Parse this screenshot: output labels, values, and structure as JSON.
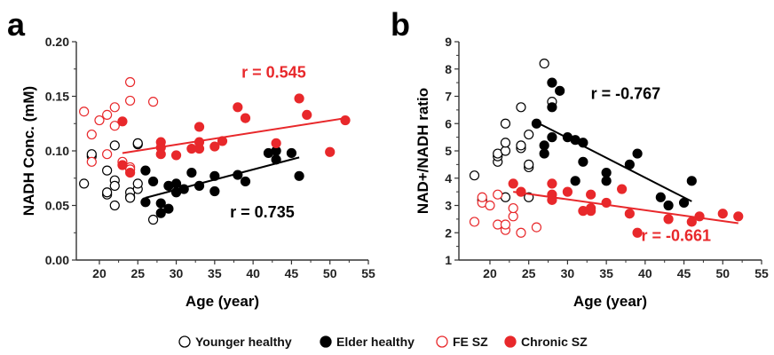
{
  "colors": {
    "healthy": "#000000",
    "sz": "#e8282b"
  },
  "legend": [
    {
      "label": "Younger healthy",
      "color": "#000000",
      "filled": false
    },
    {
      "label": "Elder healthy",
      "color": "#000000",
      "filled": true
    },
    {
      "label": "FE SZ",
      "color": "#e8282b",
      "filled": false
    },
    {
      "label": "Chronic SZ",
      "color": "#e8282b",
      "filled": true
    }
  ],
  "chart_data": [
    {
      "type": "scatter",
      "panel_label": "a",
      "xlabel": "Age (year)",
      "ylabel": "NADH Conc. (mM)",
      "xlim": [
        17,
        55
      ],
      "ylim": [
        0,
        0.2
      ],
      "xticks": [
        20,
        25,
        30,
        35,
        40,
        45,
        50,
        55
      ],
      "yticks": [
        0,
        0.05,
        0.1,
        0.15,
        0.2
      ],
      "ytick_labels": [
        "0.00",
        "0.05",
        "0.10",
        "0.15",
        "0.20"
      ],
      "series": [
        {
          "name": "Younger healthy",
          "filled": false,
          "color": "#000000",
          "points": [
            [
              18,
              0.07
            ],
            [
              19,
              0.095
            ],
            [
              19,
              0.097
            ],
            [
              21,
              0.082
            ],
            [
              21,
              0.06
            ],
            [
              21,
              0.062
            ],
            [
              22,
              0.105
            ],
            [
              22,
              0.073
            ],
            [
              22,
              0.068
            ],
            [
              22,
              0.05
            ],
            [
              24,
              0.058
            ],
            [
              24,
              0.062
            ],
            [
              24,
              0.057
            ],
            [
              25,
              0.065
            ],
            [
              25,
              0.07
            ],
            [
              25,
              0.106
            ],
            [
              25,
              0.107
            ],
            [
              27,
              0.037
            ]
          ]
        },
        {
          "name": "Elder healthy",
          "filled": true,
          "color": "#000000",
          "points": [
            [
              26,
              0.053
            ],
            [
              26,
              0.082
            ],
            [
              27,
              0.072
            ],
            [
              28,
              0.052
            ],
            [
              28,
              0.043
            ],
            [
              29,
              0.047
            ],
            [
              29,
              0.068
            ],
            [
              30,
              0.062
            ],
            [
              30,
              0.07
            ],
            [
              31,
              0.065
            ],
            [
              32,
              0.08
            ],
            [
              33,
              0.068
            ],
            [
              35,
              0.063
            ],
            [
              35,
              0.077
            ],
            [
              38,
              0.078
            ],
            [
              39,
              0.072
            ],
            [
              42,
              0.098
            ],
            [
              43,
              0.092
            ],
            [
              43,
              0.1
            ],
            [
              45,
              0.098
            ],
            [
              46,
              0.077
            ]
          ]
        },
        {
          "name": "FE SZ",
          "filled": false,
          "color": "#e8282b",
          "points": [
            [
              18,
              0.136
            ],
            [
              19,
              0.115
            ],
            [
              19,
              0.09
            ],
            [
              20,
              0.128
            ],
            [
              21,
              0.133
            ],
            [
              21,
              0.097
            ],
            [
              22,
              0.123
            ],
            [
              22,
              0.14
            ],
            [
              23,
              0.09
            ],
            [
              24,
              0.163
            ],
            [
              24,
              0.146
            ],
            [
              24,
              0.085
            ],
            [
              24,
              0.083
            ],
            [
              27,
              0.145
            ]
          ]
        },
        {
          "name": "Chronic SZ",
          "filled": true,
          "color": "#e8282b",
          "points": [
            [
              23,
              0.127
            ],
            [
              23,
              0.087
            ],
            [
              24,
              0.08
            ],
            [
              28,
              0.108
            ],
            [
              28,
              0.103
            ],
            [
              28,
              0.097
            ],
            [
              30,
              0.096
            ],
            [
              32,
              0.102
            ],
            [
              33,
              0.122
            ],
            [
              33,
              0.108
            ],
            [
              33,
              0.102
            ],
            [
              35,
              0.104
            ],
            [
              36,
              0.109
            ],
            [
              38,
              0.14
            ],
            [
              39,
              0.13
            ],
            [
              43,
              0.107
            ],
            [
              46,
              0.148
            ],
            [
              47,
              0.133
            ],
            [
              50,
              0.099
            ],
            [
              52,
              0.128
            ]
          ]
        }
      ],
      "fits": [
        {
          "color": "#e8282b",
          "x": [
            23,
            52
          ],
          "y": [
            0.098,
            0.13
          ],
          "label": "r = 0.545",
          "label_at": [
            38.5,
            0.167
          ]
        },
        {
          "color": "#000000",
          "x": [
            26,
            46
          ],
          "y": [
            0.057,
            0.094
          ],
          "label": "r = 0.735",
          "label_at": [
            37,
            0.039
          ]
        }
      ]
    },
    {
      "type": "scatter",
      "panel_label": "b",
      "xlabel": "Age (year)",
      "ylabel": "NAD+/NADH ratio",
      "xlim": [
        16,
        55
      ],
      "ylim": [
        1,
        9
      ],
      "xticks": [
        20,
        25,
        30,
        35,
        40,
        45,
        50,
        55
      ],
      "yticks": [
        1,
        2,
        3,
        4,
        5,
        6,
        7,
        8,
        9
      ],
      "ytick_labels": [
        "1",
        "2",
        "3",
        "4",
        "5",
        "6",
        "7",
        "8",
        "9"
      ],
      "series": [
        {
          "name": "Younger healthy",
          "filled": false,
          "color": "#000000",
          "points": [
            [
              18,
              4.1
            ],
            [
              19,
              3.2
            ],
            [
              21,
              4.6
            ],
            [
              21,
              4.8
            ],
            [
              21,
              4.9
            ],
            [
              22,
              5.0
            ],
            [
              22,
              5.3
            ],
            [
              22,
              6.0
            ],
            [
              22,
              3.3
            ],
            [
              24,
              5.1
            ],
            [
              24,
              5.2
            ],
            [
              24,
              6.6
            ],
            [
              25,
              4.4
            ],
            [
              25,
              4.5
            ],
            [
              25,
              5.6
            ],
            [
              25,
              3.3
            ],
            [
              27,
              8.2
            ],
            [
              28,
              6.8
            ]
          ]
        },
        {
          "name": "Elder healthy",
          "filled": true,
          "color": "#000000",
          "points": [
            [
              26,
              6.0
            ],
            [
              27,
              5.2
            ],
            [
              27,
              4.9
            ],
            [
              28,
              7.5
            ],
            [
              28,
              6.6
            ],
            [
              28,
              5.5
            ],
            [
              29,
              7.2
            ],
            [
              30,
              5.5
            ],
            [
              31,
              5.4
            ],
            [
              31,
              3.9
            ],
            [
              32,
              5.3
            ],
            [
              32,
              4.6
            ],
            [
              35,
              4.2
            ],
            [
              35,
              3.9
            ],
            [
              38,
              4.5
            ],
            [
              39,
              4.9
            ],
            [
              42,
              3.3
            ],
            [
              43,
              3.0
            ],
            [
              45,
              3.1
            ],
            [
              46,
              3.9
            ]
          ]
        },
        {
          "name": "FE SZ",
          "filled": false,
          "color": "#e8282b",
          "points": [
            [
              18,
              2.4
            ],
            [
              19,
              3.1
            ],
            [
              19,
              3.3
            ],
            [
              20,
              3.0
            ],
            [
              21,
              2.3
            ],
            [
              21,
              3.4
            ],
            [
              22,
              2.1
            ],
            [
              22,
              2.3
            ],
            [
              23,
              2.6
            ],
            [
              23,
              2.9
            ],
            [
              24,
              2.0
            ],
            [
              26,
              2.2
            ]
          ]
        },
        {
          "name": "Chronic SZ",
          "filled": true,
          "color": "#e8282b",
          "points": [
            [
              23,
              3.8
            ],
            [
              24,
              3.5
            ],
            [
              28,
              3.8
            ],
            [
              28,
              3.4
            ],
            [
              28,
              3.2
            ],
            [
              30,
              3.5
            ],
            [
              32,
              2.8
            ],
            [
              33,
              3.4
            ],
            [
              33,
              2.8
            ],
            [
              33,
              2.9
            ],
            [
              35,
              3.1
            ],
            [
              37,
              3.6
            ],
            [
              38,
              2.7
            ],
            [
              39,
              2.0
            ],
            [
              43,
              2.5
            ],
            [
              46,
              2.4
            ],
            [
              47,
              2.6
            ],
            [
              50,
              2.7
            ],
            [
              52,
              2.6
            ]
          ]
        }
      ],
      "fits": [
        {
          "color": "#000000",
          "x": [
            26,
            46
          ],
          "y": [
            6.05,
            3.15
          ],
          "label": "r = -0.767",
          "label_at": [
            33,
            6.9
          ]
        },
        {
          "color": "#e8282b",
          "x": [
            23,
            52
          ],
          "y": [
            3.5,
            2.35
          ],
          "label": "r = -0.661",
          "label_at": [
            39.5,
            1.7
          ]
        }
      ]
    }
  ]
}
